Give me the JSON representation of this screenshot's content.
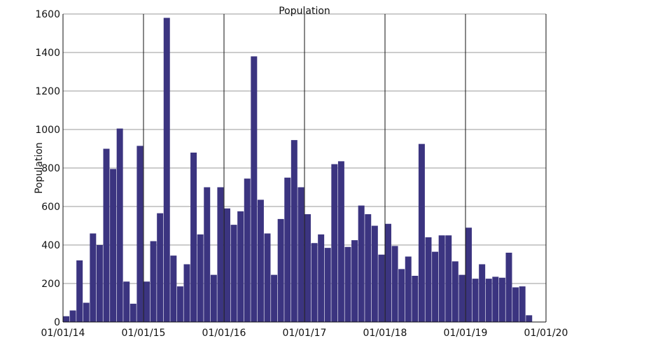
{
  "chart_data": {
    "type": "bar",
    "title": "Population",
    "xlabel": "",
    "ylabel": "Population",
    "x_tick_labels": [
      "01/01/14",
      "01/01/15",
      "01/01/16",
      "01/01/17",
      "01/01/18",
      "01/01/19",
      "01/01/20"
    ],
    "ylim": [
      0,
      1600
    ],
    "y_ticks": [
      0,
      200,
      400,
      600,
      800,
      1000,
      1200,
      1400,
      1600
    ],
    "grid": true,
    "bar_color": "#3b3480",
    "series": [
      {
        "values": [
          30,
          60,
          320,
          100,
          460,
          400,
          900,
          795,
          1005,
          210,
          95,
          915,
          210,
          420,
          565,
          1580,
          345,
          185,
          300,
          880,
          455,
          700,
          245,
          700,
          590,
          505,
          575,
          745,
          1380,
          635,
          460,
          245,
          535,
          750,
          945,
          700,
          560,
          410,
          455,
          385,
          820,
          835,
          390,
          425,
          605,
          560,
          500,
          350,
          510,
          395,
          275,
          340,
          240,
          925,
          440,
          365,
          450,
          450,
          315,
          245,
          490,
          225,
          300,
          225,
          235,
          230,
          360,
          180,
          185,
          35
        ]
      }
    ]
  }
}
